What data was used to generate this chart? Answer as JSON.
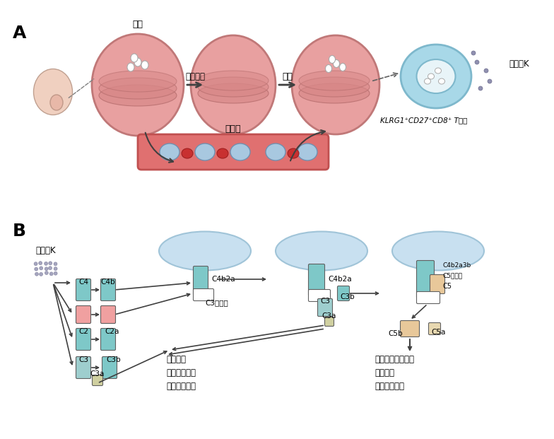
{
  "bg_color": "#ffffff",
  "panel_A_label": "A",
  "panel_B_label": "B",
  "title_息肉": "息肉",
  "label_手术清除": "手术清除",
  "label_复发": "复发",
  "label_颗粒酶K_top": "颗粒酶K",
  "label_外周血": "外周血",
  "label_KLRG1": "KLRG1⁺CD27⁺CD8⁺ T细胞",
  "panel_B_title": "颗粒酶K",
  "label_C3转化酶": "C3转化酶",
  "label_C4b2a_1": "C4b2a",
  "label_C4b2a_2": "C4b2a",
  "label_C4b2a3b": "C4b2a3b",
  "label_C5转化酶": "C5转化酶",
  "label_C5": "C5",
  "label_C3b_1": "C3b",
  "label_C3a_1": "C3a",
  "label_C3b_2": "C3b",
  "label_C3a_2": "C3a",
  "label_C3": "C3",
  "label_C5b": "C5b",
  "label_C5a": "C5a",
  "label_blood_effects": "血管扩张\n招募炎性细胞\n粒细胞脱颗粒",
  "label_MAC": "膜攻击复合物形成\n细胞裂解\n促进炎症反应",
  "color_teal": "#7ec8c8",
  "color_pink": "#f0a0a0",
  "color_light_teal": "#b0dede",
  "color_beige": "#e8c89a",
  "color_cell_blue": "#a8d8e8",
  "color_cell_outline": "#7eb8cc",
  "color_nasal_pink": "#e8a0a0",
  "color_ellipse_fill": "#c8e0f0",
  "color_ellipse_outline": "#a0c4d8",
  "color_blood_vessel": "#c85050",
  "color_arrow": "#404040",
  "color_dots": "#9090b0"
}
